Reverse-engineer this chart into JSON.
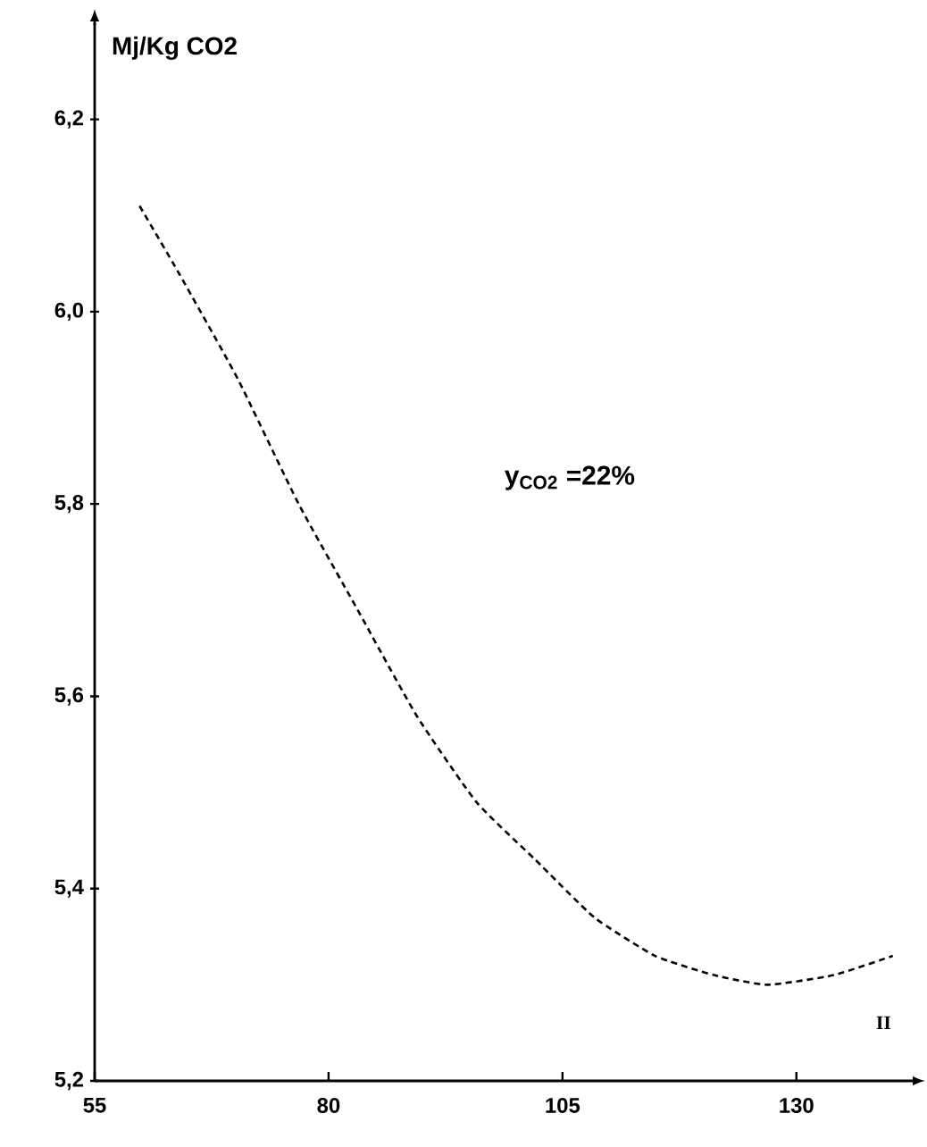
{
  "chart_data": {
    "type": "line",
    "ylabel": "Mj/Kg CO2",
    "x": [
      59.8,
      64.0,
      70.3,
      76.8,
      83.1,
      89.4,
      95.8,
      102.1,
      108.4,
      114.9,
      121.2,
      126.9,
      134.0,
      140.3
    ],
    "series": [
      {
        "color": "#000000",
        "values": [
          6.11,
          6.04,
          5.93,
          5.8,
          5.69,
          5.58,
          5.49,
          5.43,
          5.37,
          5.33,
          5.31,
          5.3,
          5.31,
          5.33
        ]
      }
    ],
    "line_style": "dashed",
    "marker": "none",
    "xlim": [
      55,
      143
    ],
    "ylim": [
      5.2,
      6.3
    ],
    "xticks": [
      55,
      80,
      105,
      130
    ],
    "yticks": [
      {
        "value": 5.2,
        "label": "5,2"
      },
      {
        "value": 5.4,
        "label": "5,4"
      },
      {
        "value": 5.6,
        "label": "5,6"
      },
      {
        "value": 5.8,
        "label": "5,8"
      },
      {
        "value": 6.0,
        "label": "6,0"
      },
      {
        "value": 6.2,
        "label": "6,2"
      }
    ],
    "annotations": [
      "y$_{CO2}$ =22%",
      "II"
    ]
  }
}
